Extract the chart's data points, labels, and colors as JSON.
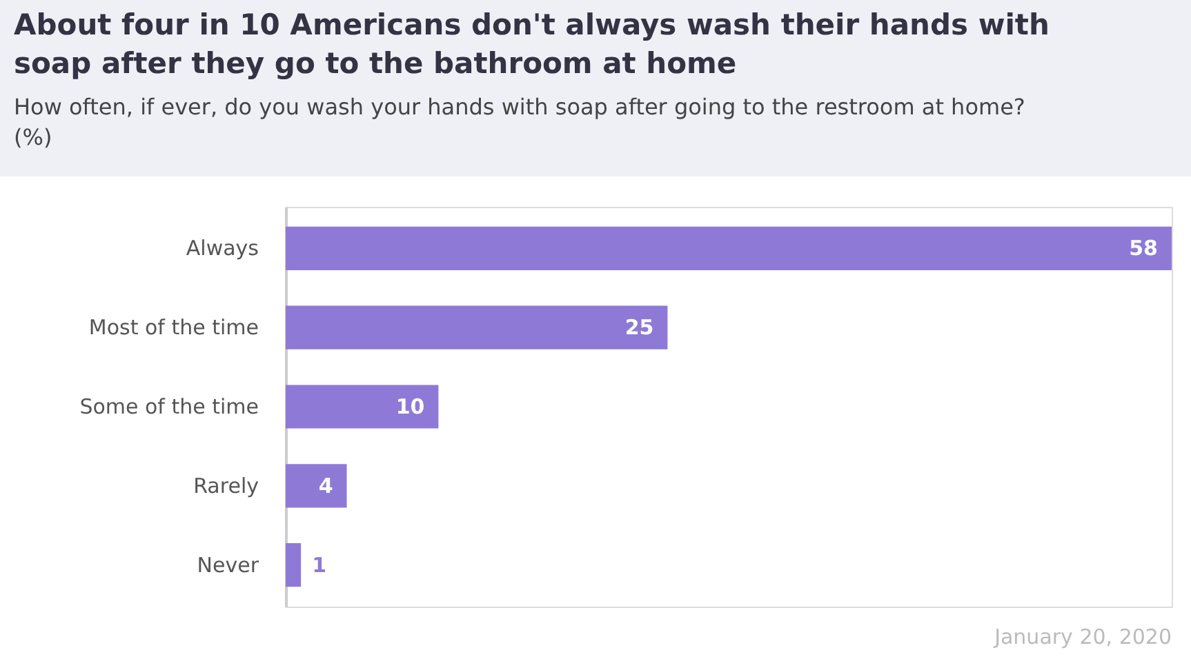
{
  "chart_data": {
    "type": "bar",
    "orientation": "horizontal",
    "title": "About four in 10 Americans don't always wash their hands with soap after they go to the bathroom at home",
    "subtitle": "How often, if ever, do you wash your hands with soap after going to the restroom at home? (%)",
    "categories": [
      "Always",
      "Most of the time",
      "Some of the time",
      "Rarely",
      "Never"
    ],
    "values": [
      58,
      25,
      10,
      4,
      1
    ],
    "color": "#8f79d7",
    "data_labels": true,
    "annotations": [
      "January 20, 2020"
    ]
  }
}
